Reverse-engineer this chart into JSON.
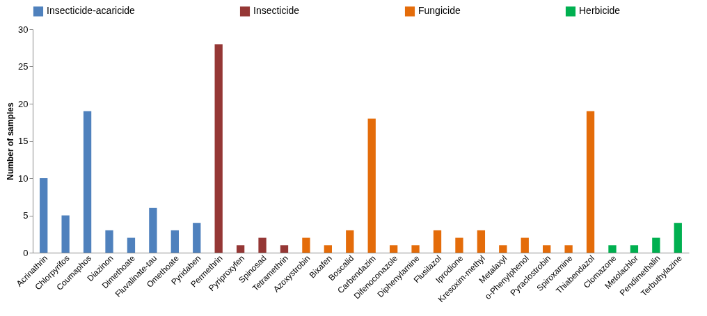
{
  "chart_data": {
    "type": "bar",
    "ylabel": "Number of samples",
    "categories": [
      "Acrinathrin",
      "Chlorpyrifos",
      "Coumaphos",
      "Diazinon",
      "Dimethoate",
      "Fluvalinate-tau",
      "Omethoate",
      "Pyridaben",
      "Permethrin",
      "Pyriproxyfen",
      "Spinosad",
      "Tetramethrin",
      "Azoxystrobin",
      "Bixafen",
      "Boscalid",
      "Carbendazim",
      "Difenoconazole",
      "Diphenylamine",
      "Flusilazol",
      "Iprodione",
      "Kresoxim-methyl",
      "Metalaxyl",
      "o-Phenylphenol",
      "Pyraclostrobin",
      "Spiroxamine",
      "Thiabendazol",
      "Clomazone",
      "Metolachlor",
      "Pendimethalin",
      "Terbuthylazine"
    ],
    "series": [
      {
        "name": "Insecticide-acaricide",
        "color": "#4f81bd",
        "values": [
          10,
          5,
          19,
          3,
          2,
          6,
          3,
          4,
          null,
          null,
          null,
          null,
          null,
          null,
          null,
          null,
          null,
          null,
          null,
          null,
          null,
          null,
          null,
          null,
          null,
          null,
          null,
          null,
          null,
          null
        ]
      },
      {
        "name": "Insecticide",
        "color": "#953735",
        "values": [
          null,
          null,
          null,
          null,
          null,
          null,
          null,
          null,
          28,
          1,
          2,
          1,
          null,
          null,
          null,
          null,
          null,
          null,
          null,
          null,
          null,
          null,
          null,
          null,
          null,
          null,
          null,
          null,
          null,
          null
        ]
      },
      {
        "name": "Fungicide",
        "color": "#e46c0a",
        "values": [
          null,
          null,
          null,
          null,
          null,
          null,
          null,
          null,
          null,
          null,
          null,
          null,
          2,
          1,
          3,
          18,
          1,
          1,
          3,
          2,
          3,
          1,
          2,
          1,
          1,
          19,
          null,
          null,
          null,
          null
        ]
      },
      {
        "name": "Herbicide",
        "color": "#00b050",
        "values": [
          null,
          null,
          null,
          null,
          null,
          null,
          null,
          null,
          null,
          null,
          null,
          null,
          null,
          null,
          null,
          null,
          null,
          null,
          null,
          null,
          null,
          null,
          null,
          null,
          null,
          null,
          1,
          1,
          2,
          4
        ]
      }
    ],
    "ylim": [
      0,
      30
    ],
    "yticks": [
      0,
      5,
      10,
      15,
      20,
      25,
      30
    ],
    "grid": false,
    "legend": "top"
  }
}
